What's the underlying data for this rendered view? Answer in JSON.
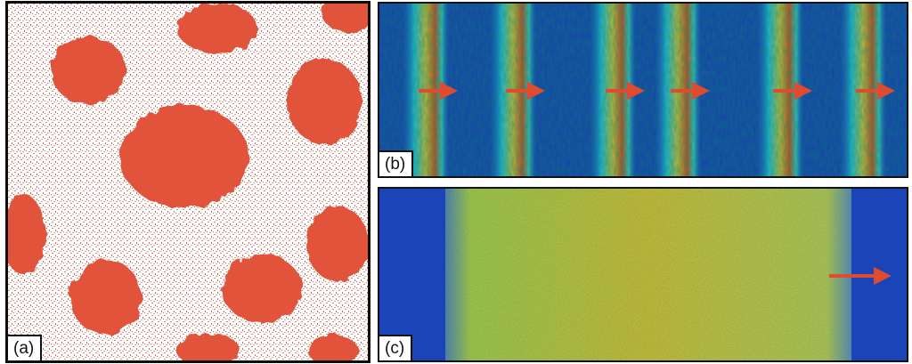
{
  "panels": [
    {
      "id": "a",
      "label": "(a)"
    },
    {
      "id": "b",
      "label": "(b)"
    },
    {
      "id": "c",
      "label": "(c)"
    }
  ],
  "colors": {
    "droplet": "#e2533a",
    "background": "#ffffff",
    "field_low": "#1e46b4",
    "field_high": "#b43214",
    "arrow": "#e04a2e"
  }
}
